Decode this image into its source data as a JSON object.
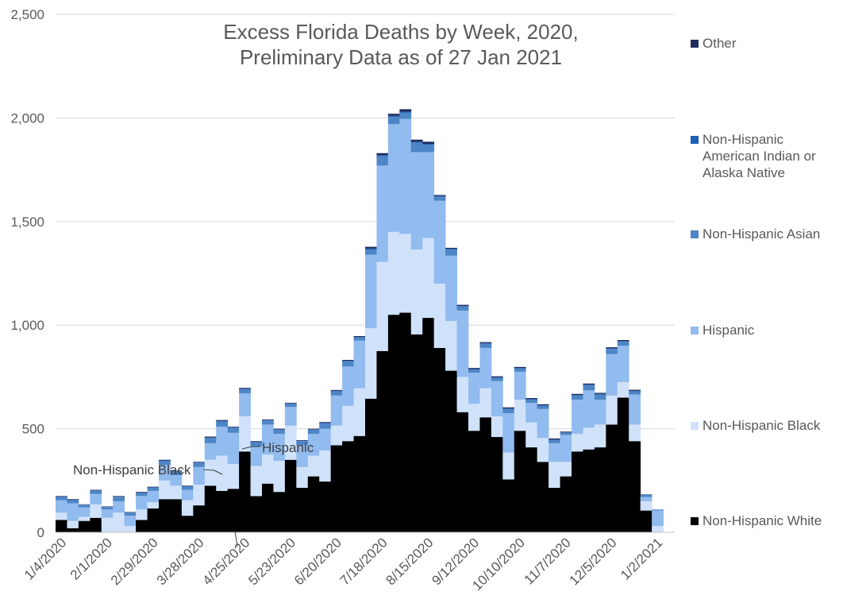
{
  "chart_data": {
    "type": "bar",
    "stacked": true,
    "title": "Excess Florida Deaths by Week, 2020,",
    "subtitle": "Preliminary Data as of 27 Jan 2021",
    "ylim": [
      0,
      2500
    ],
    "yticks": [
      0,
      500,
      1000,
      1500,
      2000,
      2500
    ],
    "ytick_labels": [
      "0",
      "500",
      "1,000",
      "1,500",
      "2,000",
      "2,500"
    ],
    "grid": true,
    "legend_placement": "right",
    "x_tick_labels": [
      "1/4/2020",
      "2/1/2020",
      "2/29/2020",
      "3/28/2020",
      "4/25/2020",
      "5/23/2020",
      "6/20/2020",
      "7/18/2020",
      "8/15/2020",
      "9/12/2020",
      "10/10/2020",
      "11/7/2020",
      "12/5/2020",
      "1/2/2021"
    ],
    "x_tick_every": 4,
    "categories": [
      "1/4/2020",
      "1/11/2020",
      "1/18/2020",
      "1/25/2020",
      "2/1/2020",
      "2/8/2020",
      "2/15/2020",
      "2/22/2020",
      "2/29/2020",
      "3/7/2020",
      "3/14/2020",
      "3/21/2020",
      "3/28/2020",
      "4/4/2020",
      "4/11/2020",
      "4/18/2020",
      "4/25/2020",
      "5/2/2020",
      "5/9/2020",
      "5/16/2020",
      "5/23/2020",
      "5/30/2020",
      "6/6/2020",
      "6/13/2020",
      "6/20/2020",
      "6/27/2020",
      "7/4/2020",
      "7/11/2020",
      "7/18/2020",
      "7/25/2020",
      "8/1/2020",
      "8/8/2020",
      "8/15/2020",
      "8/22/2020",
      "8/29/2020",
      "9/5/2020",
      "9/12/2020",
      "9/19/2020",
      "9/26/2020",
      "10/3/2020",
      "10/10/2020",
      "10/17/2020",
      "10/24/2020",
      "10/31/2020",
      "11/7/2020",
      "11/14/2020",
      "11/21/2020",
      "11/28/2020",
      "12/5/2020",
      "12/12/2020",
      "12/19/2020",
      "12/26/2020",
      "1/2/2021",
      "1/9/2021"
    ],
    "series": [
      {
        "name": "Non-Hispanic White",
        "color": "#000000",
        "values": [
          60,
          20,
          55,
          70,
          0,
          0,
          0,
          60,
          115,
          160,
          160,
          80,
          130,
          225,
          200,
          210,
          390,
          175,
          235,
          195,
          350,
          215,
          270,
          245,
          420,
          440,
          465,
          645,
          875,
          1050,
          1060,
          955,
          1035,
          890,
          780,
          580,
          490,
          555,
          460,
          255,
          490,
          410,
          340,
          215,
          270,
          390,
          400,
          410,
          520,
          650,
          440,
          105,
          0,
          0
        ]
      },
      {
        "name": "Non-Hispanic Black",
        "color": "#cfe2fa",
        "values": [
          35,
          35,
          20,
          65,
          70,
          95,
          30,
          50,
          30,
          90,
          65,
          75,
          100,
          125,
          170,
          120,
          170,
          145,
          140,
          150,
          165,
          100,
          100,
          150,
          95,
          170,
          230,
          340,
          430,
          400,
          380,
          410,
          385,
          310,
          240,
          170,
          130,
          140,
          100,
          130,
          150,
          120,
          115,
          125,
          70,
          85,
          105,
          110,
          140,
          75,
          80,
          45,
          30,
          0
        ]
      },
      {
        "name": "Hispanic",
        "color": "#92bbef",
        "values": [
          60,
          85,
          45,
          50,
          40,
          55,
          50,
          65,
          55,
          75,
          50,
          50,
          85,
          80,
          140,
          150,
          110,
          95,
          145,
          130,
          90,
          105,
          105,
          105,
          145,
          190,
          230,
          355,
          465,
          520,
          555,
          470,
          415,
          400,
          315,
          320,
          150,
          195,
          170,
          190,
          135,
          95,
          140,
          90,
          130,
          165,
          180,
          120,
          200,
          175,
          145,
          20,
          75,
          0
        ]
      },
      {
        "name": "Non-Hispanic Asian",
        "color": "#4d86c6",
        "values": [
          15,
          15,
          12,
          15,
          12,
          20,
          15,
          15,
          15,
          20,
          18,
          15,
          20,
          25,
          25,
          25,
          20,
          20,
          20,
          20,
          15,
          20,
          20,
          25,
          20,
          25,
          15,
          25,
          45,
          35,
          30,
          45,
          35,
          20,
          30,
          20,
          15,
          20,
          15,
          20,
          15,
          15,
          15,
          15,
          10,
          20,
          25,
          25,
          25,
          20,
          15,
          10,
          5,
          0
        ]
      },
      {
        "name": "Non-Hispanic American Indian or Alaska Native",
        "color": "#1f5fb3",
        "values": [
          2,
          2,
          1,
          2,
          1,
          2,
          1,
          2,
          2,
          2,
          2,
          2,
          2,
          3,
          3,
          2,
          3,
          2,
          2,
          2,
          2,
          2,
          2,
          3,
          3,
          3,
          3,
          5,
          5,
          5,
          5,
          5,
          5,
          3,
          3,
          3,
          3,
          3,
          3,
          3,
          3,
          3,
          3,
          3,
          2,
          3,
          3,
          3,
          3,
          3,
          3,
          1,
          0,
          0
        ]
      },
      {
        "name": "Other",
        "color": "#1f2b5e",
        "values": [
          3,
          3,
          2,
          3,
          2,
          3,
          2,
          3,
          3,
          3,
          3,
          3,
          3,
          4,
          4,
          3,
          4,
          3,
          3,
          3,
          3,
          3,
          3,
          4,
          4,
          4,
          4,
          8,
          10,
          10,
          12,
          10,
          10,
          5,
          5,
          5,
          5,
          5,
          5,
          5,
          5,
          5,
          5,
          5,
          4,
          5,
          5,
          5,
          5,
          5,
          5,
          2,
          0,
          0
        ]
      }
    ],
    "annotations": [
      "Hispanic",
      "Non-Hispanic Black"
    ]
  },
  "legend": {
    "items": [
      {
        "label": "Other",
        "color": "#1f2b5e"
      },
      {
        "label": "Non-Hispanic American Indian or Alaska Native",
        "color": "#1f5fb3"
      },
      {
        "label": "Non-Hispanic Asian",
        "color": "#4d86c6"
      },
      {
        "label": "Hispanic",
        "color": "#92bbef"
      },
      {
        "label": "Non-Hispanic Black",
        "color": "#cfe2fa"
      },
      {
        "label": "Non-Hispanic White",
        "color": "#000000"
      }
    ]
  }
}
